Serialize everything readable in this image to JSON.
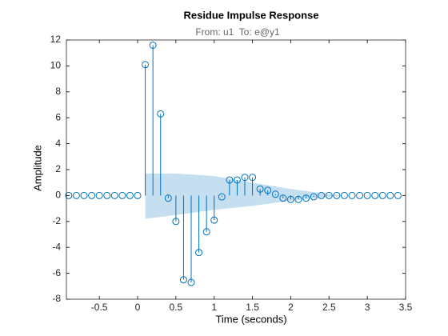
{
  "chart_data": {
    "type": "stem",
    "title": "Residue Impulse Response",
    "subtitle": "From: u1  To: e@y1",
    "xlabel": "Time (seconds)",
    "ylabel": "Amplitude",
    "x": [
      -0.9,
      -0.8,
      -0.7,
      -0.6,
      -0.5,
      -0.4,
      -0.3,
      -0.2,
      -0.1,
      0,
      0.1,
      0.2,
      0.3,
      0.4,
      0.5,
      0.6,
      0.7,
      0.8,
      0.9,
      1,
      1.1,
      1.2,
      1.3,
      1.4,
      1.5,
      1.6,
      1.7,
      1.8,
      1.9,
      2,
      2.1,
      2.2,
      2.3,
      2.4,
      2.5,
      2.6,
      2.7,
      2.8,
      2.9,
      3,
      3.1,
      3.2,
      3.3,
      3.4
    ],
    "values": [
      0,
      0,
      0,
      0,
      0,
      0,
      0,
      0,
      0,
      0,
      10.1,
      11.6,
      6.3,
      -0.2,
      -2,
      -6.5,
      -6.7,
      -4.4,
      -2.8,
      -1.9,
      -0.1,
      1.2,
      1.2,
      1.4,
      1.4,
      0.5,
      0.4,
      0.1,
      -0.2,
      -0.3,
      -0.3,
      -0.2,
      -0.1,
      0,
      0,
      0,
      0,
      0,
      0,
      0,
      0,
      0,
      0,
      0
    ],
    "color": "#0072bd",
    "band": {
      "x": [
        0.1,
        0.5,
        1,
        1.5,
        2,
        2.5,
        2.7
      ],
      "upper": [
        1.7,
        1.7,
        1.5,
        1,
        0.5,
        0.1,
        0
      ],
      "lower": [
        -1.8,
        -1.5,
        -1.1,
        -0.8,
        -0.4,
        -0.1,
        0
      ],
      "color": "#c5def0"
    },
    "xlim": [
      -0.93,
      3.5
    ],
    "ylim": [
      -8,
      12
    ],
    "xticks": [
      -0.5,
      0,
      0.5,
      1,
      1.5,
      2,
      2.5,
      3,
      3.5
    ],
    "yticks": [
      -8,
      -6,
      -4,
      -2,
      0,
      2,
      4,
      6,
      8,
      10,
      12
    ]
  }
}
